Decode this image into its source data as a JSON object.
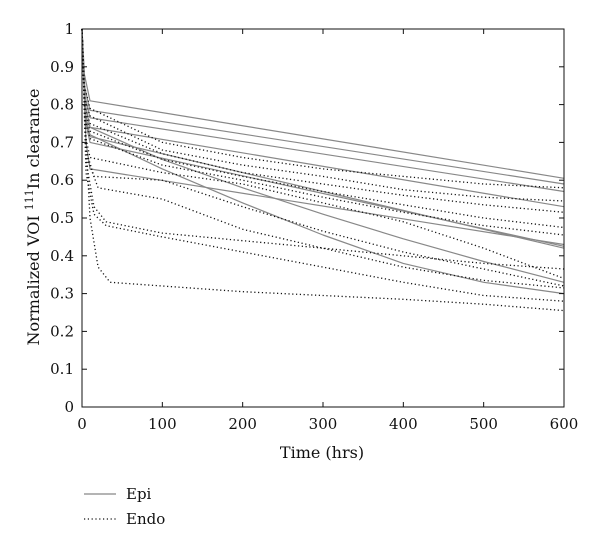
{
  "chart_data": {
    "type": "line",
    "title": "",
    "xlabel": "Time (hrs)",
    "ylabel_main": "Normalized VOI ",
    "ylabel_sup": "111",
    "ylabel_rest": "In clearance",
    "xlim": [
      0,
      600
    ],
    "ylim": [
      0,
      1
    ],
    "x_ticks": [
      "0",
      "100",
      "200",
      "300",
      "400",
      "500",
      "600"
    ],
    "y_ticks": [
      "0",
      "0.1",
      "0.2",
      "0.3",
      "0.4",
      "0.5",
      "0.6",
      "0.7",
      "0.8",
      "0.9",
      "1"
    ],
    "grid": false,
    "legend_position": "bottom-left",
    "series": [
      {
        "name": "Epi",
        "color": "#888888",
        "style": "solid"
      },
      {
        "name": "Endo",
        "color": "#111111",
        "style": "dotted"
      }
    ],
    "epi_curves": [
      {
        "x": [
          0,
          3,
          10,
          600
        ],
        "y": [
          1.0,
          0.88,
          0.81,
          0.605
        ]
      },
      {
        "x": [
          0,
          3,
          10,
          600
        ],
        "y": [
          1.0,
          0.85,
          0.785,
          0.59
        ]
      },
      {
        "x": [
          0,
          4,
          10,
          600
        ],
        "y": [
          1.0,
          0.82,
          0.765,
          0.57
        ]
      },
      {
        "x": [
          0,
          4,
          10,
          600
        ],
        "y": [
          1.0,
          0.8,
          0.74,
          0.53
        ]
      },
      {
        "x": [
          0,
          4,
          10,
          600
        ],
        "y": [
          1.0,
          0.78,
          0.715,
          0.42
        ]
      },
      {
        "x": [
          0,
          4,
          10,
          600
        ],
        "y": [
          1.0,
          0.76,
          0.7,
          0.425
        ]
      },
      {
        "x": [
          0,
          5,
          10,
          600
        ],
        "y": [
          1.0,
          0.7,
          0.63,
          0.43
        ]
      },
      {
        "x": [
          0,
          4,
          10,
          100,
          200,
          300,
          400,
          500,
          600
        ],
        "y": [
          1.0,
          0.8,
          0.74,
          0.655,
          0.58,
          0.51,
          0.445,
          0.385,
          0.33
        ]
      },
      {
        "x": [
          0,
          4,
          10,
          100,
          200,
          300,
          400,
          500,
          600
        ],
        "y": [
          1.0,
          0.77,
          0.72,
          0.63,
          0.54,
          0.455,
          0.38,
          0.33,
          0.3
        ]
      }
    ],
    "endo_curves": [
      {
        "x": [
          0,
          3,
          10,
          100,
          200,
          300,
          400,
          500,
          600
        ],
        "y": [
          1.0,
          0.85,
          0.79,
          0.7,
          0.66,
          0.63,
          0.61,
          0.59,
          0.58
        ]
      },
      {
        "x": [
          0,
          3,
          10,
          100,
          200,
          300,
          400,
          500,
          600
        ],
        "y": [
          1.0,
          0.82,
          0.77,
          0.68,
          0.64,
          0.61,
          0.575,
          0.555,
          0.545
        ]
      },
      {
        "x": [
          0,
          3,
          10,
          100,
          200,
          300,
          400,
          500,
          600
        ],
        "y": [
          1.0,
          0.8,
          0.75,
          0.67,
          0.62,
          0.59,
          0.56,
          0.535,
          0.515
        ]
      },
      {
        "x": [
          0,
          4,
          10,
          100,
          200,
          300,
          400,
          500,
          600
        ],
        "y": [
          1.0,
          0.78,
          0.73,
          0.655,
          0.61,
          0.57,
          0.535,
          0.5,
          0.475
        ]
      },
      {
        "x": [
          0,
          4,
          10,
          100,
          200,
          300,
          400,
          500,
          600
        ],
        "y": [
          1.0,
          0.76,
          0.71,
          0.64,
          0.6,
          0.555,
          0.515,
          0.48,
          0.455
        ]
      },
      {
        "x": [
          0,
          4,
          10,
          100,
          200,
          300,
          400,
          500,
          600
        ],
        "y": [
          1.0,
          0.72,
          0.66,
          0.62,
          0.59,
          0.54,
          0.49,
          0.42,
          0.34
        ]
      },
      {
        "x": [
          0,
          5,
          15,
          100,
          200,
          300,
          400,
          500,
          600
        ],
        "y": [
          1.0,
          0.68,
          0.61,
          0.6,
          0.53,
          0.465,
          0.41,
          0.365,
          0.32
        ]
      },
      {
        "x": [
          0,
          6,
          20,
          100,
          200,
          300,
          400,
          500,
          600
        ],
        "y": [
          1.0,
          0.66,
          0.58,
          0.55,
          0.47,
          0.42,
          0.37,
          0.335,
          0.315
        ]
      },
      {
        "x": [
          0,
          5,
          15,
          30,
          100,
          200,
          300,
          400,
          500,
          600
        ],
        "y": [
          1.0,
          0.65,
          0.53,
          0.49,
          0.46,
          0.44,
          0.42,
          0.4,
          0.38,
          0.365
        ]
      },
      {
        "x": [
          0,
          5,
          15,
          30,
          100,
          200,
          300,
          400,
          500,
          600
        ],
        "y": [
          1.0,
          0.62,
          0.51,
          0.48,
          0.45,
          0.41,
          0.37,
          0.33,
          0.295,
          0.28
        ]
      },
      {
        "x": [
          0,
          4,
          10,
          20,
          35,
          100,
          200,
          300,
          400,
          500,
          600
        ],
        "y": [
          1.0,
          0.75,
          0.5,
          0.37,
          0.33,
          0.32,
          0.305,
          0.295,
          0.285,
          0.272,
          0.255
        ]
      }
    ]
  }
}
